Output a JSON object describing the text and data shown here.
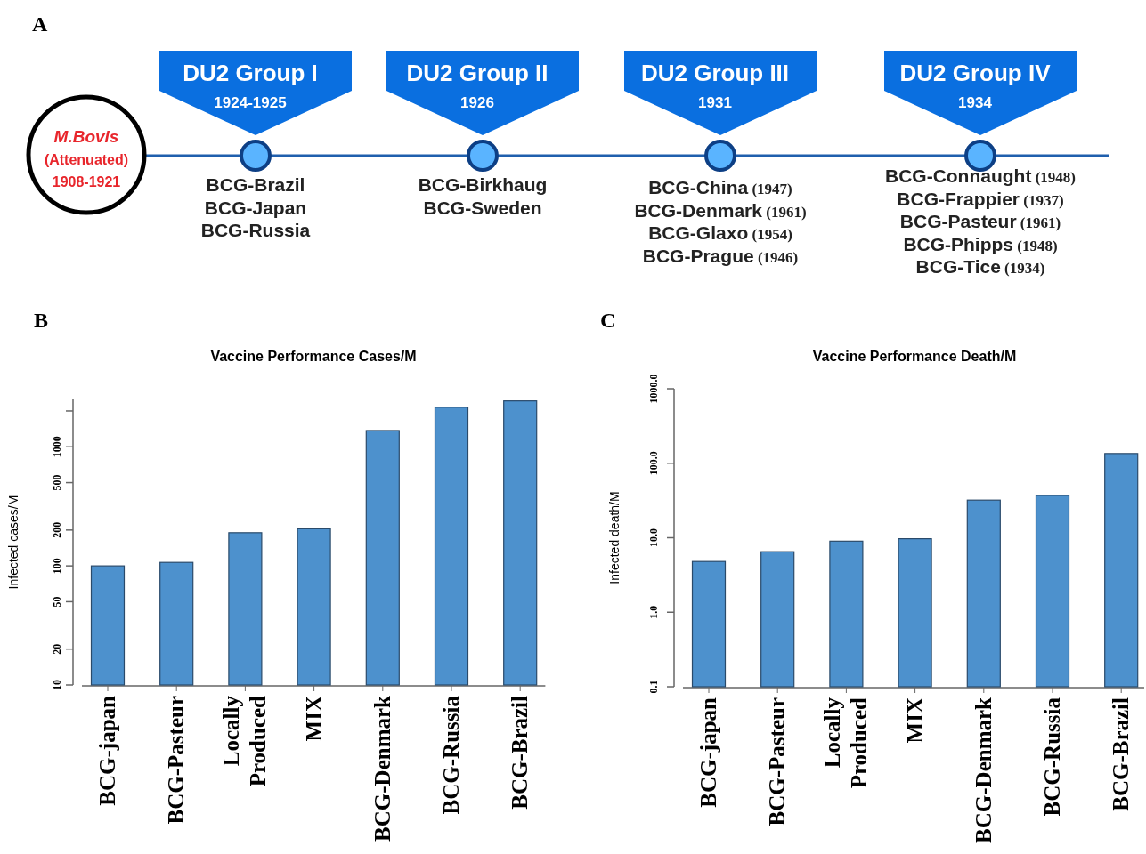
{
  "chart_data": [
    {
      "type": "other",
      "annotations": [
        "A",
        "M.Bovis\n(Attenuated)\n1908-1921",
        "DU2 Group I",
        "1924-1925",
        "BCG-Brazil\nBCG-Japan\nBCG-Russia",
        "DU2 Group II",
        "1926",
        "BCG-Birkhaug\nBCG-Sweden",
        "DU2 Group III",
        "1931",
        "BCG-China (1947)\nBCG-Denmark (1961)\nBCG-Glaxo (1954)\nBCG-Prague (1946)",
        "DU2 Group IV",
        "1934",
        "BCG-Connaught (1948)\nBCG-Frappier (1937)\nBCG-Pasteur (1961)\nBCG-Phipps (1948)\nBCG-Tice (1934)"
      ]
    },
    {
      "type": "bar",
      "title": "Vaccine Performance Cases/M",
      "ylabel": "Infected cases/M",
      "annotations": [
        "B"
      ],
      "categories": [
        "BCG-japan",
        "BCG-Pasteur",
        "Locally Produced",
        "MIX",
        "BCG-Denmark",
        "BCG-Russia",
        "BCG-Brazil"
      ],
      "values": [
        100,
        107,
        190,
        205,
        1370,
        2150,
        2430
      ],
      "color": "#4d91cd",
      "log": true,
      "ylim": [
        10,
        2500
      ],
      "yticks": [
        10,
        20,
        50,
        100,
        200,
        500,
        1000,
        {
          "value": 2000,
          "label": null
        }
      ]
    },
    {
      "type": "bar",
      "title": "Vaccine Performance Death/M",
      "ylabel": "Infected death/M",
      "annotations": [
        "C"
      ],
      "categories": [
        "BCG-japan",
        "BCG-Pasteur",
        "Locally Produced",
        "MIX",
        "BCG-Denmark",
        "BCG-Russia",
        "BCG-Brazil"
      ],
      "values": [
        4.8,
        6.5,
        9,
        9.7,
        32,
        37,
        135
      ],
      "color": "#4d91cd",
      "log": true,
      "ylim": [
        0.1,
        1000
      ],
      "yticks": [
        {
          "value": 0.1,
          "label": "0.1"
        },
        {
          "value": 1,
          "label": "1.0"
        },
        {
          "value": 10,
          "label": "10.0"
        },
        {
          "value": 100,
          "label": "100.0"
        },
        {
          "value": 1000,
          "label": "1000.0"
        }
      ]
    }
  ]
}
